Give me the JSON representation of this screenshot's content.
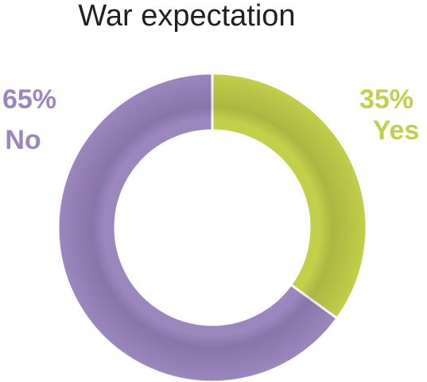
{
  "title": "War expectation",
  "chart_data": {
    "type": "pie",
    "variant": "donut",
    "title": "War expectation",
    "slices": [
      {
        "label": "Yes",
        "value": 35,
        "display": "35%",
        "color": "#c2cf4a"
      },
      {
        "label": "No",
        "value": 65,
        "display": "65%",
        "color": "#9b86be"
      }
    ]
  }
}
